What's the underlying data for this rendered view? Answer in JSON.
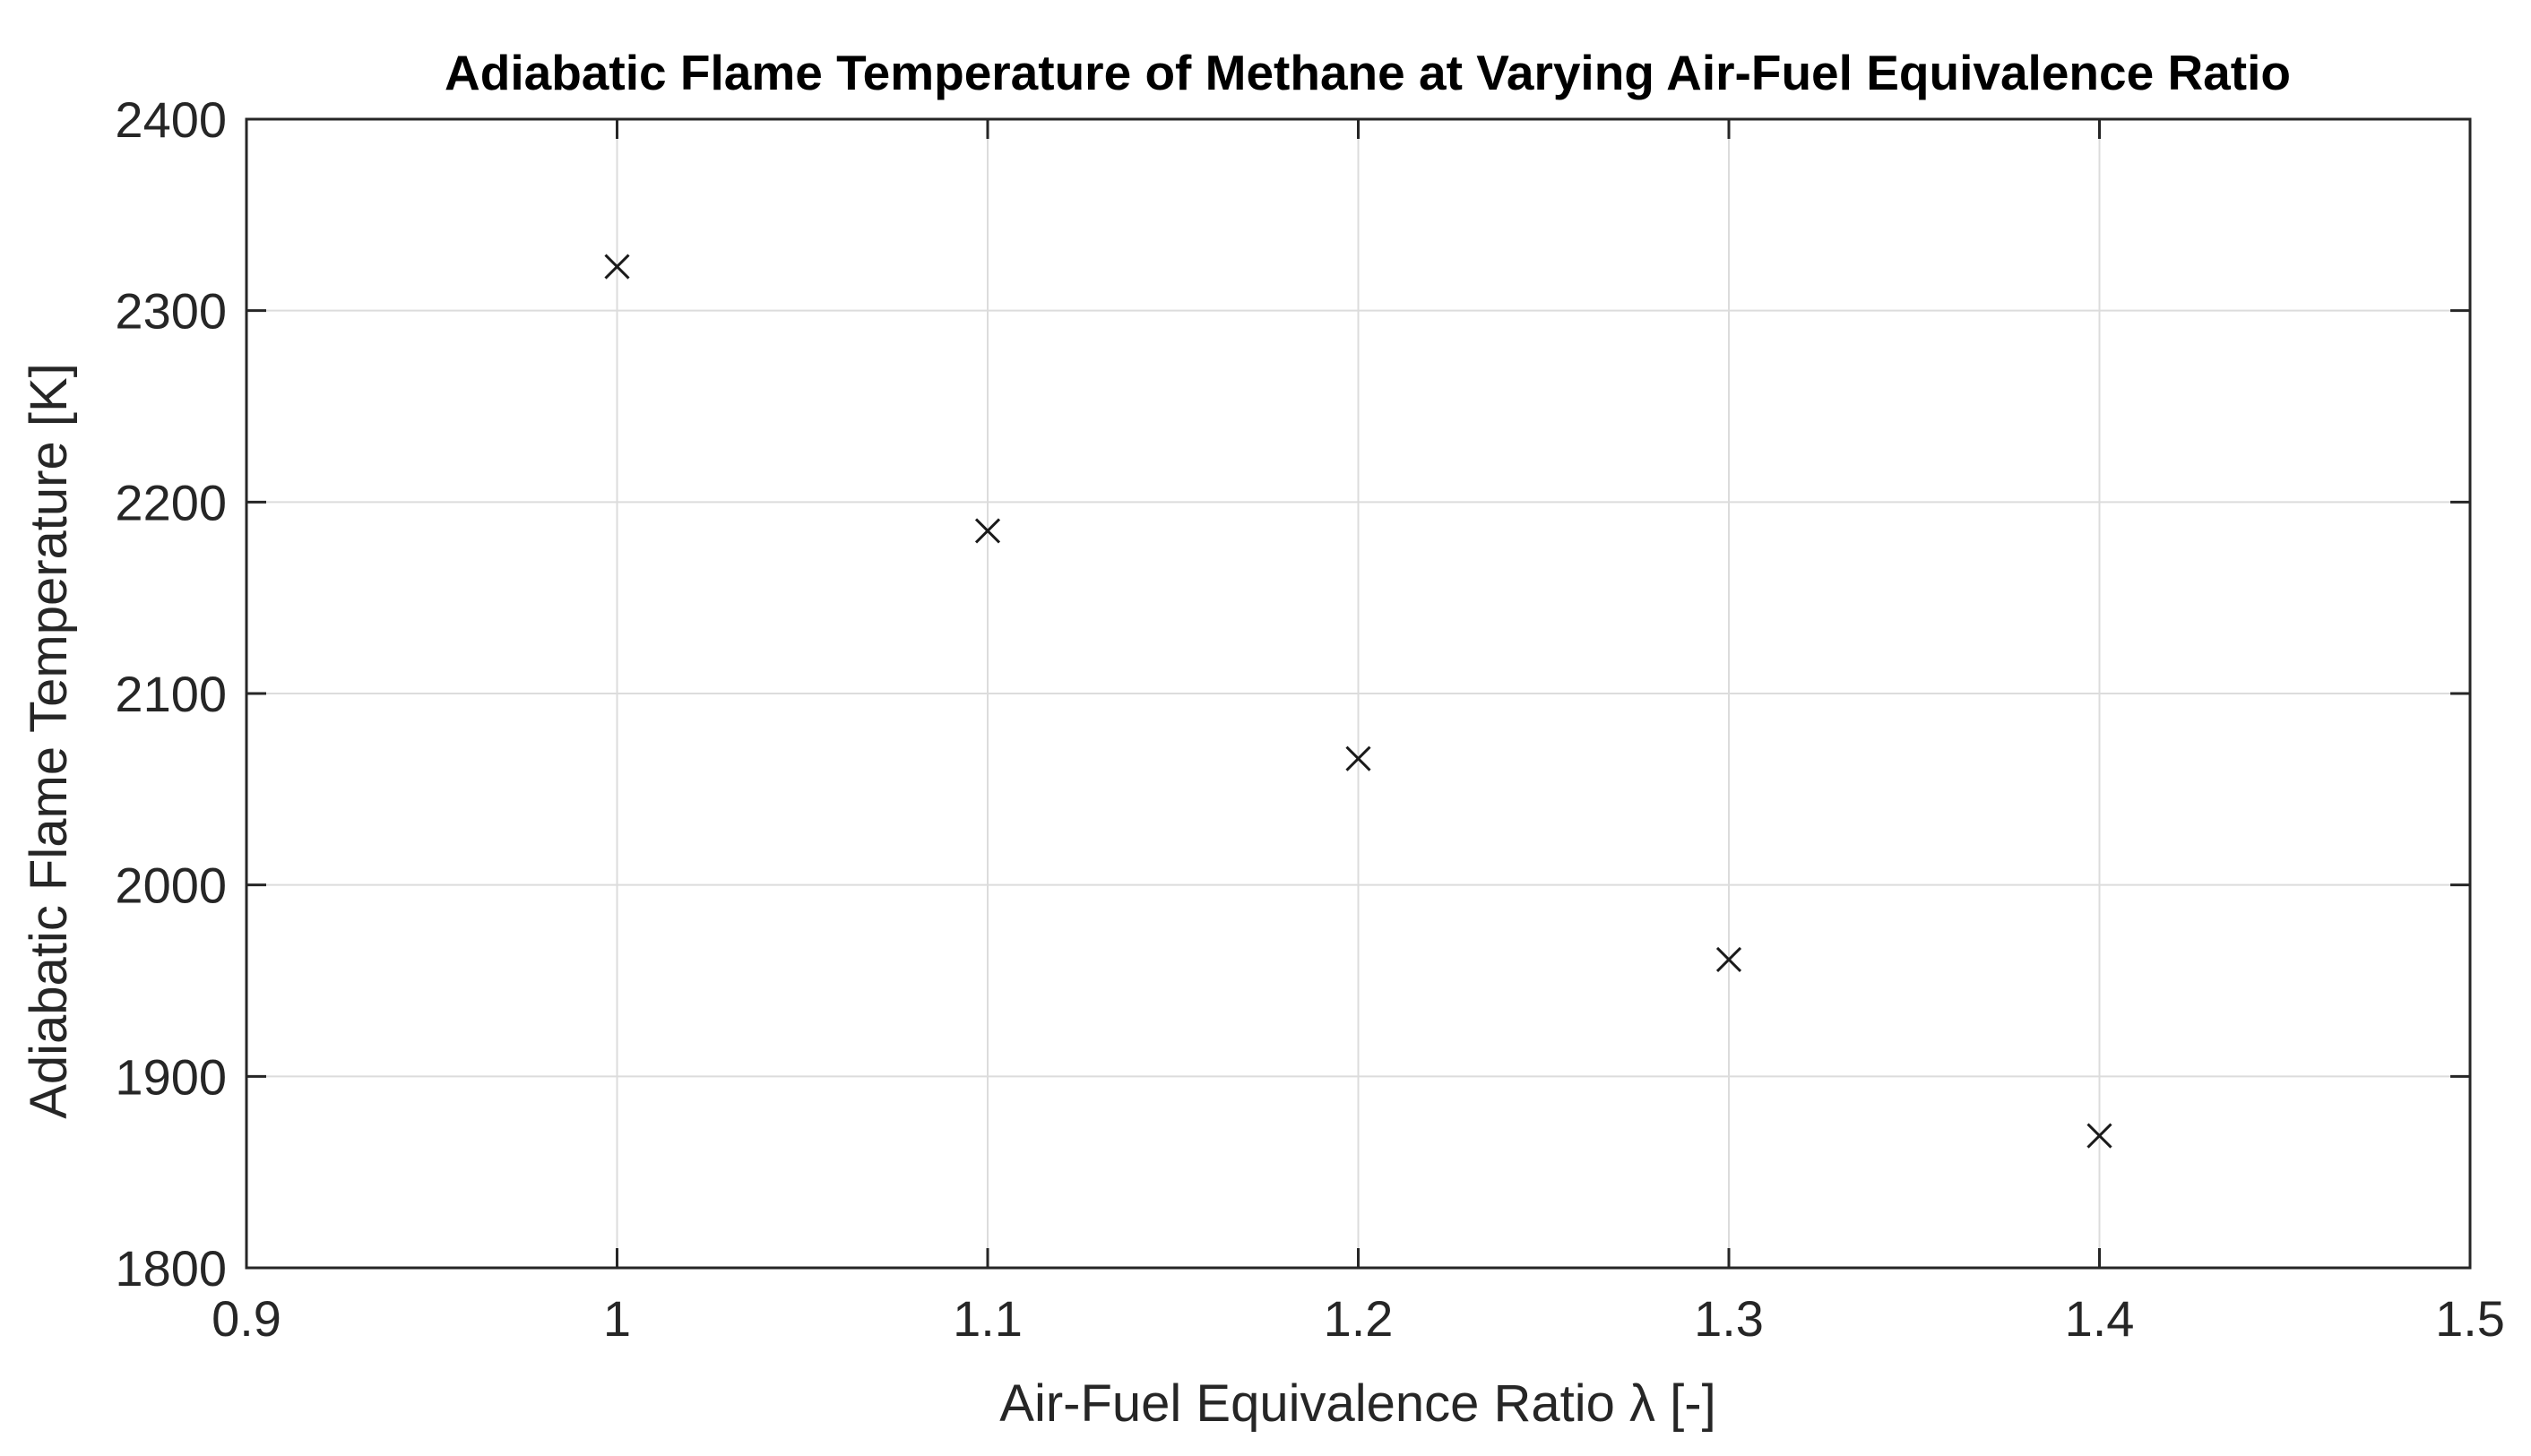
{
  "chart_data": {
    "type": "scatter",
    "title": "Adiabatic Flame Temperature of Methane at Varying Air-Fuel Equivalence Ratio",
    "xlabel": "Air-Fuel Equivalence Ratio λ [-]",
    "ylabel": "Adiabatic Flame Temperature [K]",
    "xlim": [
      0.9,
      1.5
    ],
    "ylim": [
      1800,
      2400
    ],
    "xticks": [
      0.9,
      1.0,
      1.1,
      1.2,
      1.3,
      1.4,
      1.5
    ],
    "xtick_labels": [
      "0.9",
      "1",
      "1.1",
      "1.2",
      "1.3",
      "1.4",
      "1.5"
    ],
    "yticks": [
      1800,
      1900,
      2000,
      2100,
      2200,
      2300,
      2400
    ],
    "ytick_labels": [
      "1800",
      "1900",
      "2000",
      "2100",
      "2200",
      "2300",
      "2400"
    ],
    "grid": true,
    "marker": "x",
    "marker_color": "#1a1a1a",
    "series": [
      {
        "x": [
          1.0,
          1.1,
          1.2,
          1.3,
          1.4
        ],
        "y": [
          2323,
          2185,
          2066,
          1961,
          1869
        ]
      }
    ]
  }
}
